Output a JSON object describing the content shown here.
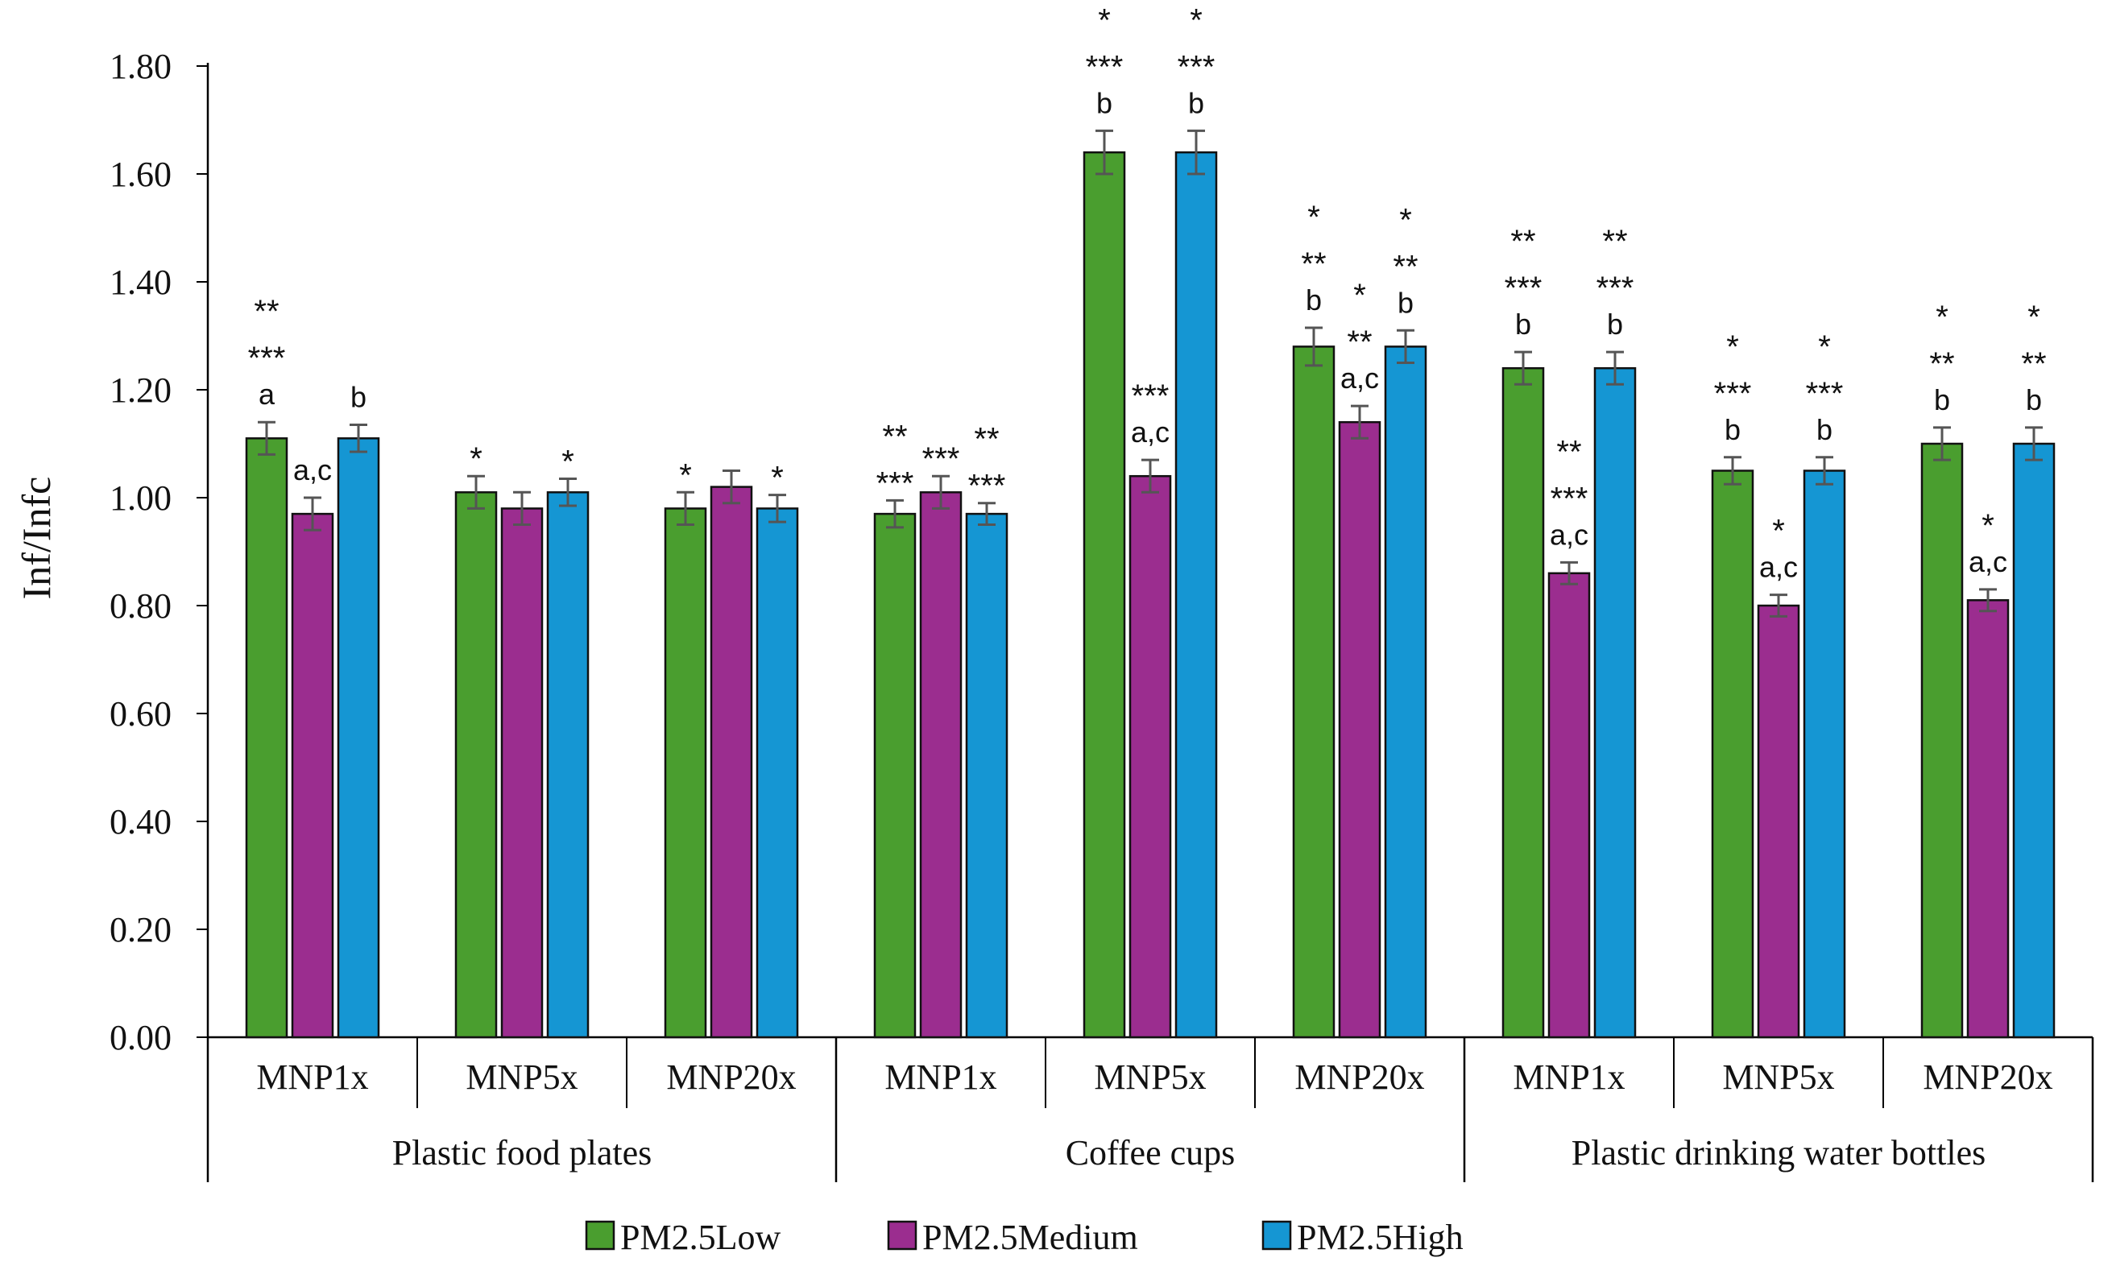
{
  "chart_data": {
    "type": "bar",
    "ylabel": "Inf/Infc",
    "xlabel": "",
    "ylim": [
      0,
      1.8
    ],
    "yticks": [
      "0.00",
      "0.20",
      "0.40",
      "0.60",
      "0.80",
      "1.00",
      "1.20",
      "1.40",
      "1.60",
      "1.80"
    ],
    "groups": [
      "Plastic food plates",
      "Coffee cups",
      "Plastic drinking water bottles"
    ],
    "categories": [
      "MNP1x",
      "MNP5x",
      "MNP20x",
      "MNP1x",
      "MNP5x",
      "MNP20x",
      "MNP1x",
      "MNP5x",
      "MNP20x"
    ],
    "series": [
      {
        "name": "PM2.5Low",
        "color": "#4a9e2f",
        "values": [
          1.11,
          1.01,
          0.98,
          0.97,
          1.64,
          1.28,
          1.24,
          1.05,
          1.1
        ],
        "errors": [
          0.03,
          0.03,
          0.03,
          0.025,
          0.04,
          0.035,
          0.03,
          0.025,
          0.03
        ]
      },
      {
        "name": "PM2.5Medium",
        "color": "#9b2d8f",
        "values": [
          0.97,
          0.98,
          1.02,
          1.01,
          1.04,
          1.14,
          0.86,
          0.8,
          0.81
        ],
        "errors": [
          0.03,
          0.03,
          0.03,
          0.03,
          0.03,
          0.03,
          0.02,
          0.02,
          0.02
        ]
      },
      {
        "name": "PM2.5High",
        "color": "#1596d3",
        "values": [
          1.11,
          1.01,
          0.98,
          0.97,
          1.64,
          1.28,
          1.24,
          1.05,
          1.1
        ],
        "errors": [
          0.025,
          0.025,
          0.025,
          0.02,
          0.04,
          0.03,
          0.03,
          0.025,
          0.03
        ]
      }
    ],
    "annotations": [
      [
        [
          "**",
          "***",
          "a"
        ],
        [
          "a,c"
        ],
        [
          "b"
        ]
      ],
      [
        [
          "*"
        ],
        [],
        [
          "*"
        ]
      ],
      [
        [
          "*"
        ],
        [],
        [
          "*"
        ]
      ],
      [
        [
          "**",
          "***"
        ],
        [
          "***"
        ],
        [
          "**",
          "***"
        ]
      ],
      [
        [
          "*",
          "***",
          "b"
        ],
        [
          "***",
          "a,c"
        ],
        [
          "*",
          "***",
          "b"
        ]
      ],
      [
        [
          "*",
          "**",
          "b"
        ],
        [
          "*",
          "**",
          "a,c"
        ],
        [
          "*",
          "**",
          "b"
        ]
      ],
      [
        [
          "**",
          "***",
          "b"
        ],
        [
          "**",
          "***",
          "a,c"
        ],
        [
          "**",
          "***",
          "b"
        ]
      ],
      [
        [
          "*",
          "***",
          "b"
        ],
        [
          "*",
          "a,c"
        ],
        [
          "*",
          "***",
          "b"
        ]
      ],
      [
        [
          "*",
          "**",
          "b"
        ],
        [
          "*",
          "a,c"
        ],
        [
          "*",
          "**",
          "b"
        ]
      ]
    ],
    "legend_position": "bottom"
  }
}
